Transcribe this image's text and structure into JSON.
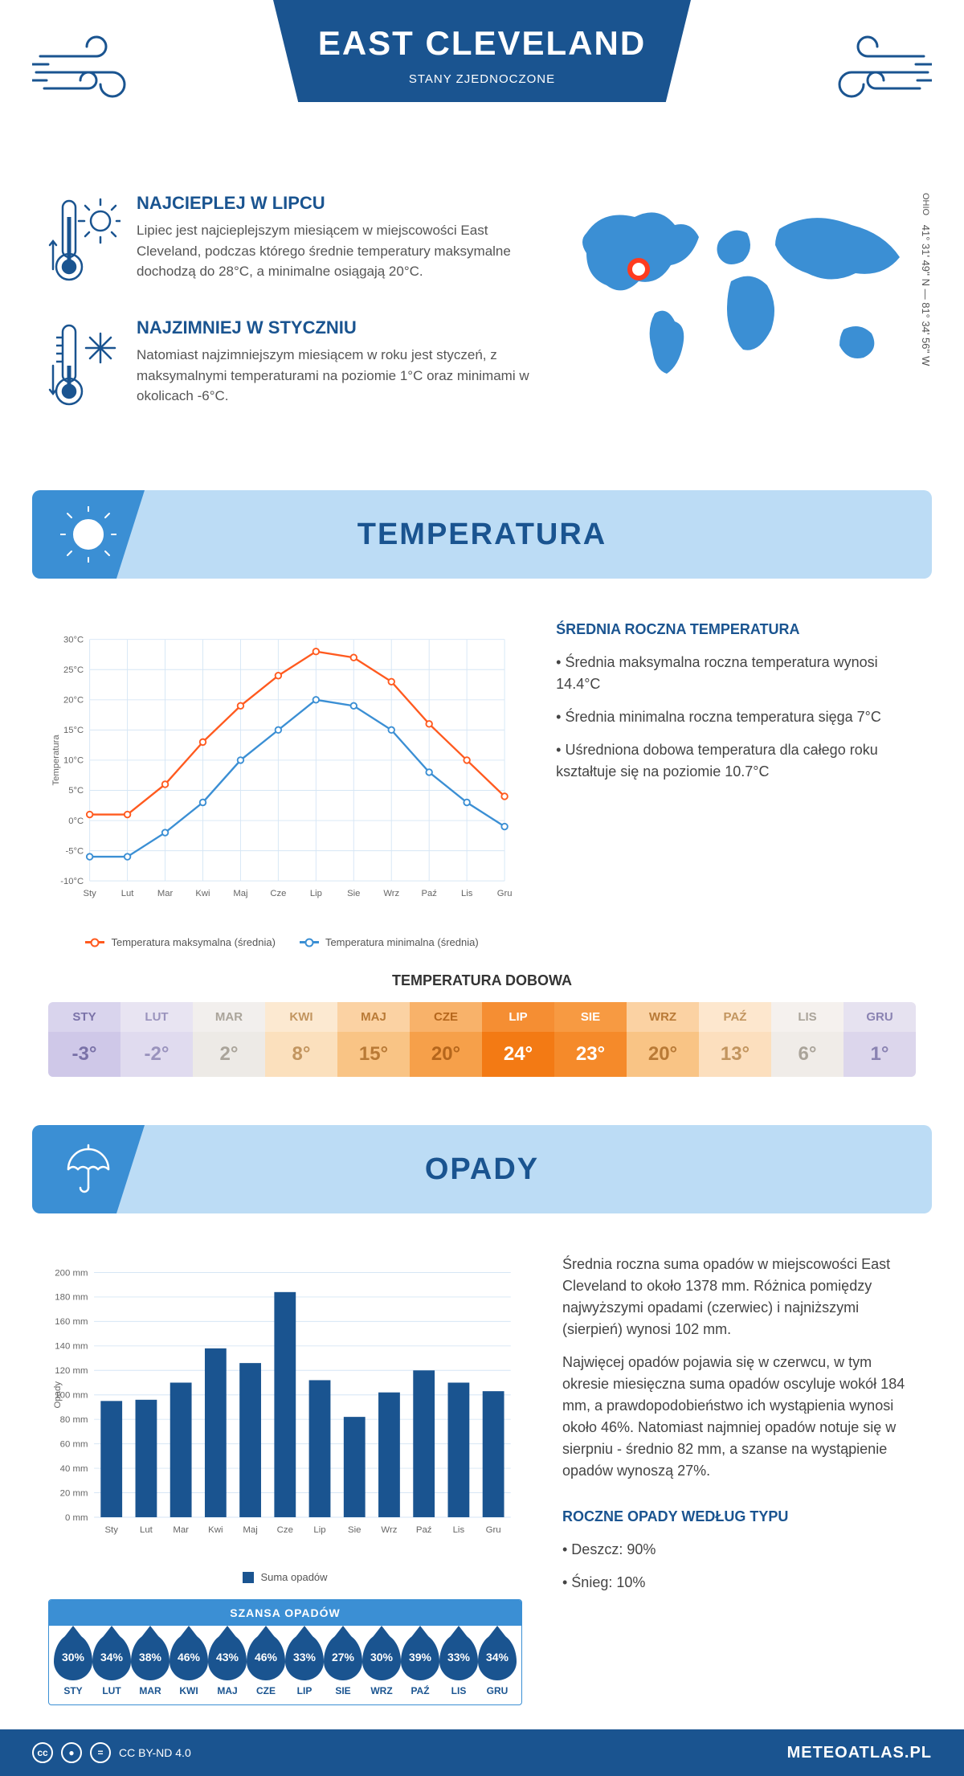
{
  "header": {
    "title": "EAST CLEVELAND",
    "subtitle": "STANY ZJEDNOCZONE"
  },
  "coords": {
    "state": "OHIO",
    "value": "41° 31' 49'' N — 81° 34' 56'' W"
  },
  "intro": {
    "hot": {
      "title": "NAJCIEPLEJ W LIPCU",
      "text": "Lipiec jest najcieplejszym miesiącem w miejscowości East Cleveland, podczas którego średnie temperatury maksymalne dochodzą do 28°C, a minimalne osiągają 20°C."
    },
    "cold": {
      "title": "NAJZIMNIEJ W STYCZNIU",
      "text": "Natomiast najzimniejszym miesiącem w roku jest styczeń, z maksymalnymi temperaturami na poziomie 1°C oraz minimami w okolicach -6°C."
    }
  },
  "temp_section": {
    "title": "TEMPERATURA",
    "chart": {
      "type": "line",
      "months": [
        "Sty",
        "Lut",
        "Mar",
        "Kwi",
        "Maj",
        "Cze",
        "Lip",
        "Sie",
        "Wrz",
        "Paź",
        "Lis",
        "Gru"
      ],
      "ymin": -10,
      "ymax": 30,
      "ystep": 5,
      "ylabel": "Temperatura",
      "grid_color": "#d6e6f5",
      "background": "#ffffff",
      "series": [
        {
          "name": "Temperatura maksymalna (średnia)",
          "color": "#ff5a1f",
          "values": [
            1,
            1,
            6,
            13,
            19,
            24,
            28,
            27,
            23,
            16,
            10,
            4
          ]
        },
        {
          "name": "Temperatura minimalna (średnia)",
          "color": "#3b8fd4",
          "values": [
            -6,
            -6,
            -2,
            3,
            10,
            15,
            20,
            19,
            15,
            8,
            3,
            -1
          ]
        }
      ]
    },
    "side": {
      "title": "ŚREDNIA ROCZNA TEMPERATURA",
      "bullets": [
        "• Średnia maksymalna roczna temperatura wynosi 14.4°C",
        "• Średnia minimalna roczna temperatura sięga 7°C",
        "• Uśredniona dobowa temperatura dla całego roku kształtuje się na poziomie 10.7°C"
      ]
    },
    "daily": {
      "title": "TEMPERATURA DOBOWA",
      "months": [
        "STY",
        "LUT",
        "MAR",
        "KWI",
        "MAJ",
        "CZE",
        "LIP",
        "SIE",
        "WRZ",
        "PAŹ",
        "LIS",
        "GRU"
      ],
      "values": [
        "-3°",
        "-2°",
        "2°",
        "8°",
        "15°",
        "20°",
        "24°",
        "23°",
        "20°",
        "13°",
        "6°",
        "1°"
      ],
      "colors_header": [
        "#d9d4ed",
        "#e8e4f2",
        "#f2efed",
        "#fce9d1",
        "#fbd2a3",
        "#f8b26a",
        "#f58e33",
        "#f79a42",
        "#fbd2a3",
        "#fde7ce",
        "#f5f1ee",
        "#e6e2f0"
      ],
      "colors_value": [
        "#cfc8e8",
        "#e0dbef",
        "#edeae6",
        "#fbe0bd",
        "#f9c485",
        "#f6a04a",
        "#f37a14",
        "#f58a2a",
        "#f9c485",
        "#fcdfbe",
        "#f0ece8",
        "#dcd6ec"
      ],
      "text_colors": [
        "#7a72a8",
        "#9a93bd",
        "#aaa49a",
        "#c2955f",
        "#b97a36",
        "#b5661c",
        "#ffffff",
        "#ffffff",
        "#b97a36",
        "#c2955f",
        "#aaa49a",
        "#8a83b2"
      ]
    }
  },
  "rain_section": {
    "title": "OPADY",
    "chart": {
      "type": "bar",
      "months": [
        "Sty",
        "Lut",
        "Mar",
        "Kwi",
        "Maj",
        "Cze",
        "Lip",
        "Sie",
        "Wrz",
        "Paź",
        "Lis",
        "Gru"
      ],
      "ymin": 0,
      "ymax": 200,
      "ystep": 20,
      "ylabel": "Opady",
      "bar_color": "#1a5490",
      "grid_color": "#d6e6f5",
      "legend": "Suma opadów",
      "values": [
        95,
        96,
        110,
        138,
        126,
        184,
        112,
        82,
        102,
        120,
        110,
        103
      ]
    },
    "side": {
      "p1": "Średnia roczna suma opadów w miejscowości East Cleveland to około 1378 mm. Różnica pomiędzy najwyższymi opadami (czerwiec) i najniższymi (sierpień) wynosi 102 mm.",
      "p2": "Najwięcej opadów pojawia się w czerwcu, w tym okresie miesięczna suma opadów oscyluje wokół 184 mm, a prawdopodobieństwo ich wystąpienia wynosi około 46%. Natomiast najmniej opadów notuje się w sierpniu - średnio 82 mm, a szanse na wystąpienie opadów wynoszą 27%.",
      "type_title": "ROCZNE OPADY WEDŁUG TYPU",
      "type_bullets": [
        "• Deszcz: 90%",
        "• Śnieg: 10%"
      ]
    },
    "chance": {
      "title": "SZANSA OPADÓW",
      "months": [
        "STY",
        "LUT",
        "MAR",
        "KWI",
        "MAJ",
        "CZE",
        "LIP",
        "SIE",
        "WRZ",
        "PAŹ",
        "LIS",
        "GRU"
      ],
      "values": [
        "30%",
        "34%",
        "38%",
        "46%",
        "43%",
        "46%",
        "33%",
        "27%",
        "30%",
        "39%",
        "33%",
        "34%"
      ]
    }
  },
  "footer": {
    "license": "CC BY-ND 4.0",
    "site": "METEOATLAS.PL"
  }
}
